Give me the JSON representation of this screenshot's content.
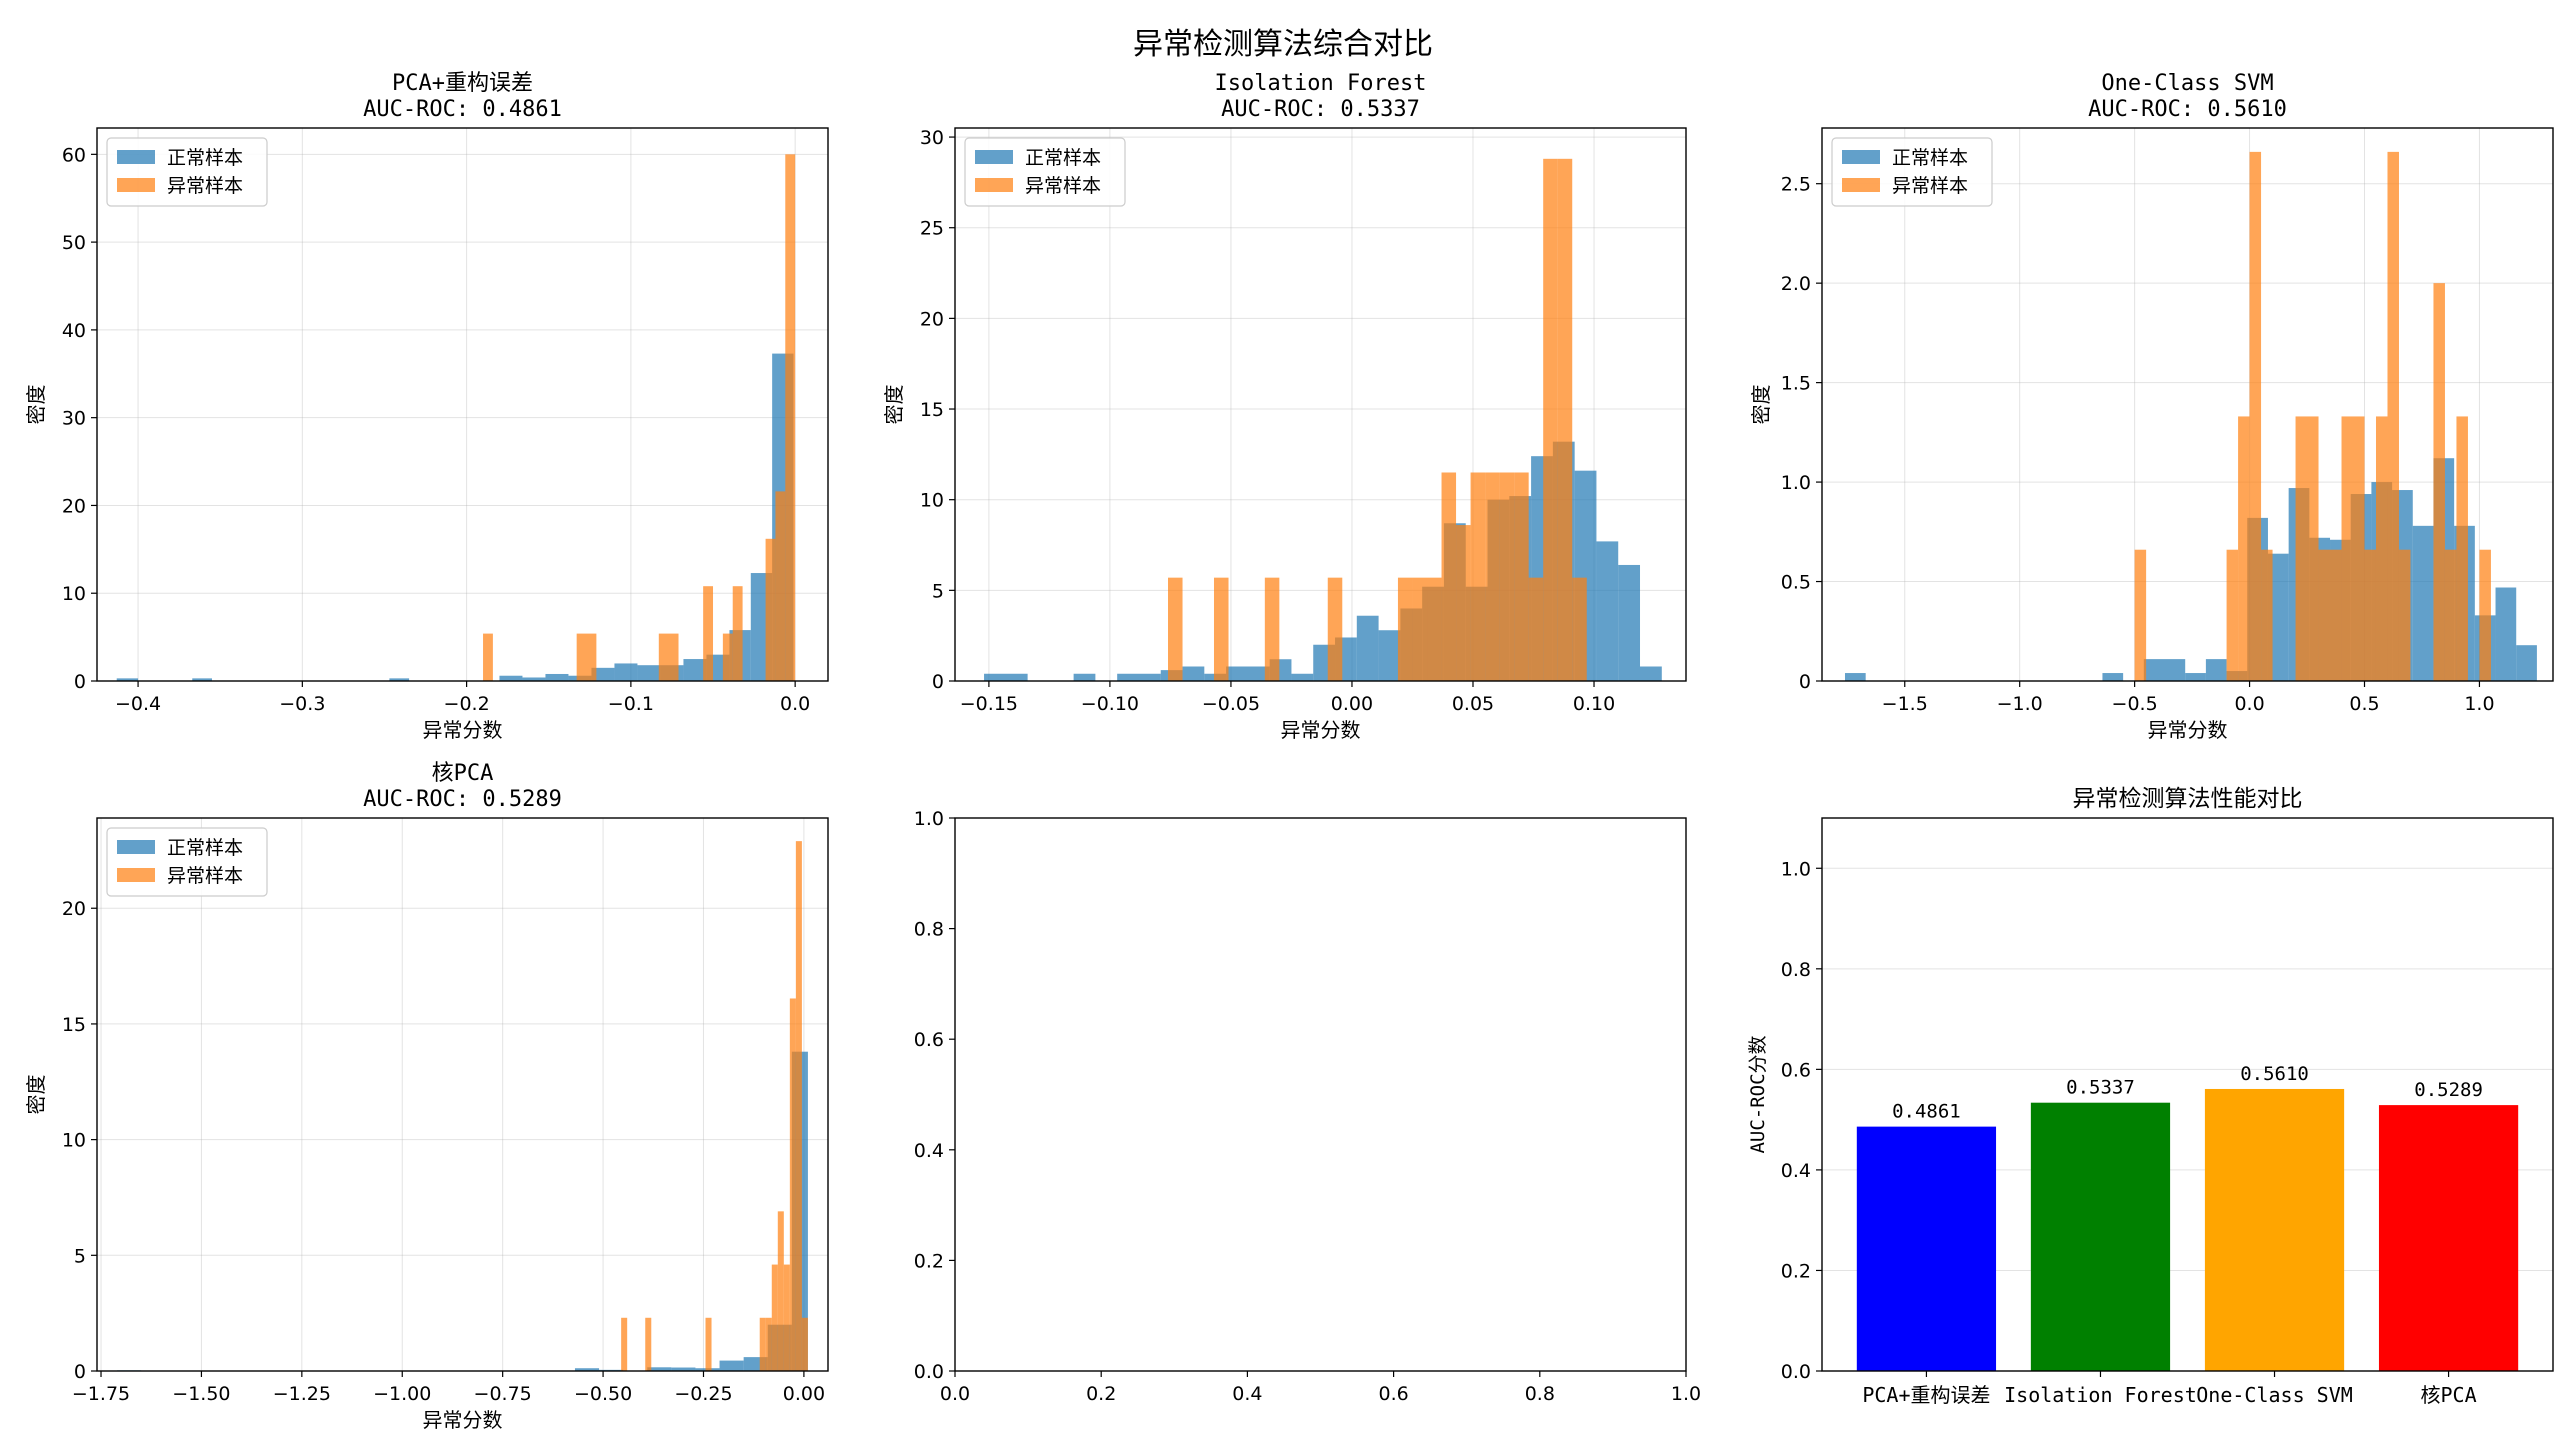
{
  "figure": {
    "title": "异常检测算法综合对比"
  },
  "colors": {
    "normal": "#1f77b4",
    "anomaly": "#ff7f0e",
    "grid": "#b0b0b0"
  },
  "legend": {
    "normal": "正常样本",
    "anomaly": "异常样本"
  },
  "chart_data": [
    {
      "type": "histogram",
      "title_line1": "PCA+重构误差",
      "title_line2": "AUC-ROC: 0.4861",
      "xlabel": "异常分数",
      "ylabel": "密度",
      "xlim": [
        -0.425,
        0.02
      ],
      "ylim": [
        0,
        63
      ],
      "xticks": [
        -0.4,
        -0.3,
        -0.2,
        -0.1,
        0.0
      ],
      "xtick_labels": [
        "−0.4",
        "−0.3",
        "−0.2",
        "−0.1",
        "0.0"
      ],
      "yticks": [
        0,
        10,
        20,
        30,
        40,
        50,
        60
      ],
      "ytick_labels": [
        "0",
        "10",
        "20",
        "30",
        "40",
        "50",
        "60"
      ],
      "legend_position": "upper left",
      "grid": true,
      "series": [
        {
          "name": "正常样本",
          "bins": [
            [
              -0.413,
              -0.4,
              0.3
            ],
            [
              -0.367,
              -0.355,
              0.3
            ],
            [
              -0.247,
              -0.235,
              0.3
            ],
            [
              -0.18,
              -0.166,
              0.6
            ],
            [
              -0.166,
              -0.152,
              0.4
            ],
            [
              -0.152,
              -0.138,
              0.8
            ],
            [
              -0.138,
              -0.124,
              0.6
            ],
            [
              -0.124,
              -0.11,
              1.5
            ],
            [
              -0.11,
              -0.096,
              2.0
            ],
            [
              -0.096,
              -0.082,
              1.8
            ],
            [
              -0.082,
              -0.068,
              1.8
            ],
            [
              -0.068,
              -0.054,
              2.5
            ],
            [
              -0.054,
              -0.04,
              3.0
            ],
            [
              -0.04,
              -0.027,
              5.8
            ],
            [
              -0.027,
              -0.014,
              12.3
            ],
            [
              -0.014,
              -0.001,
              37.3
            ]
          ]
        },
        {
          "name": "异常样本",
          "bins": [
            [
              -0.19,
              -0.184,
              5.4
            ],
            [
              -0.133,
              -0.121,
              5.4
            ],
            [
              -0.083,
              -0.071,
              5.4
            ],
            [
              -0.056,
              -0.05,
              10.8
            ],
            [
              -0.044,
              -0.038,
              5.4
            ],
            [
              -0.038,
              -0.032,
              10.8
            ],
            [
              -0.018,
              -0.012,
              16.2
            ],
            [
              -0.012,
              -0.006,
              21.6
            ],
            [
              -0.006,
              0.0,
              60.0
            ]
          ]
        }
      ]
    },
    {
      "type": "histogram",
      "title_line1": "Isolation Forest",
      "title_line2": "AUC-ROC: 0.5337",
      "xlabel": "异常分数",
      "ylabel": "密度",
      "xlim": [
        -0.164,
        0.138
      ],
      "ylim": [
        0,
        30.5
      ],
      "xticks": [
        -0.15,
        -0.1,
        -0.05,
        0.0,
        0.05,
        0.1
      ],
      "xtick_labels": [
        "−0.15",
        "−0.10",
        "−0.05",
        "0.00",
        "0.05",
        "0.10"
      ],
      "yticks": [
        0,
        5,
        10,
        15,
        20,
        25,
        30
      ],
      "ytick_labels": [
        "0",
        "5",
        "10",
        "15",
        "20",
        "25",
        "30"
      ],
      "legend_position": "upper left",
      "grid": true,
      "series": [
        {
          "name": "正常样本",
          "bins": [
            [
              -0.152,
              -0.134,
              0.4
            ],
            [
              -0.115,
              -0.106,
              0.4
            ],
            [
              -0.097,
              -0.079,
              0.4
            ],
            [
              -0.079,
              -0.07,
              0.6
            ],
            [
              -0.07,
              -0.061,
              0.8
            ],
            [
              -0.061,
              -0.052,
              0.4
            ],
            [
              -0.052,
              -0.034,
              0.8
            ],
            [
              -0.034,
              -0.025,
              1.2
            ],
            [
              -0.025,
              -0.016,
              0.4
            ],
            [
              -0.016,
              -0.007,
              2.0
            ],
            [
              -0.007,
              0.002,
              2.4
            ],
            [
              0.002,
              0.011,
              3.6
            ],
            [
              0.011,
              0.02,
              2.8
            ],
            [
              0.02,
              0.029,
              4.0
            ],
            [
              0.029,
              0.038,
              5.2
            ],
            [
              0.038,
              0.047,
              8.7
            ],
            [
              0.047,
              0.056,
              5.2
            ],
            [
              0.056,
              0.065,
              10.0
            ],
            [
              0.065,
              0.074,
              10.2
            ],
            [
              0.074,
              0.083,
              12.4
            ],
            [
              0.083,
              0.092,
              13.2
            ],
            [
              0.092,
              0.101,
              11.6
            ],
            [
              0.101,
              0.11,
              7.7
            ],
            [
              0.11,
              0.119,
              6.4
            ],
            [
              0.119,
              0.128,
              0.8
            ]
          ]
        },
        {
          "name": "异常样本",
          "bins": [
            [
              -0.076,
              -0.07,
              5.7
            ],
            [
              -0.057,
              -0.051,
              5.7
            ],
            [
              -0.036,
              -0.03,
              5.7
            ],
            [
              -0.01,
              -0.004,
              5.7
            ],
            [
              0.019,
              0.025,
              5.7
            ],
            [
              0.025,
              0.031,
              5.7
            ],
            [
              0.031,
              0.037,
              5.7
            ],
            [
              0.037,
              0.043,
              11.5
            ],
            [
              0.043,
              0.049,
              8.6
            ],
            [
              0.049,
              0.055,
              11.5
            ],
            [
              0.055,
              0.061,
              11.5
            ],
            [
              0.061,
              0.067,
              11.5
            ],
            [
              0.067,
              0.073,
              11.5
            ],
            [
              0.073,
              0.079,
              5.7
            ],
            [
              0.079,
              0.085,
              28.8
            ],
            [
              0.085,
              0.091,
              28.8
            ],
            [
              0.091,
              0.097,
              5.7
            ]
          ]
        }
      ]
    },
    {
      "type": "histogram",
      "title_line1": "One-Class SVM",
      "title_line2": "AUC-ROC: 0.5610",
      "xlabel": "异常分数",
      "ylabel": "密度",
      "xlim": [
        -1.86,
        1.32
      ],
      "ylim": [
        0,
        2.78
      ],
      "xticks": [
        -1.5,
        -1.0,
        -0.5,
        0.0,
        0.5,
        1.0
      ],
      "xtick_labels": [
        "−1.5",
        "−1.0",
        "−0.5",
        "0.0",
        "0.5",
        "1.0"
      ],
      "yticks": [
        0,
        0.5,
        1.0,
        1.5,
        2.0,
        2.5
      ],
      "ytick_labels": [
        "0",
        "0.5",
        "1.0",
        "1.5",
        "2.0",
        "2.5"
      ],
      "legend_position": "upper left",
      "grid": true,
      "series": [
        {
          "name": "正常样本",
          "bins": [
            [
              -1.76,
              -1.67,
              0.04
            ],
            [
              -0.64,
              -0.55,
              0.04
            ],
            [
              -0.46,
              -0.28,
              0.11
            ],
            [
              -0.28,
              -0.19,
              0.04
            ],
            [
              -0.19,
              -0.1,
              0.11
            ],
            [
              -0.1,
              -0.01,
              0.05
            ],
            [
              -0.01,
              0.08,
              0.82
            ],
            [
              0.08,
              0.17,
              0.64
            ],
            [
              0.17,
              0.26,
              0.97
            ],
            [
              0.26,
              0.35,
              0.72
            ],
            [
              0.35,
              0.44,
              0.71
            ],
            [
              0.44,
              0.53,
              0.94
            ],
            [
              0.53,
              0.62,
              1.0
            ],
            [
              0.62,
              0.71,
              0.96
            ],
            [
              0.71,
              0.8,
              0.78
            ],
            [
              0.8,
              0.89,
              1.12
            ],
            [
              0.89,
              0.98,
              0.78
            ],
            [
              0.98,
              1.07,
              0.33
            ],
            [
              1.07,
              1.16,
              0.47
            ],
            [
              1.16,
              1.25,
              0.18
            ]
          ]
        },
        {
          "name": "异常样本",
          "bins": [
            [
              -0.5,
              -0.45,
              0.66
            ],
            [
              -0.1,
              -0.05,
              0.66
            ],
            [
              -0.05,
              0.0,
              1.33
            ],
            [
              0.0,
              0.05,
              2.66
            ],
            [
              0.05,
              0.1,
              0.66
            ],
            [
              0.2,
              0.3,
              1.33
            ],
            [
              0.3,
              0.4,
              0.66
            ],
            [
              0.4,
              0.5,
              1.33
            ],
            [
              0.5,
              0.55,
              0.66
            ],
            [
              0.55,
              0.6,
              1.33
            ],
            [
              0.6,
              0.65,
              2.66
            ],
            [
              0.65,
              0.7,
              0.66
            ],
            [
              0.8,
              0.85,
              2.0
            ],
            [
              0.85,
              0.9,
              0.66
            ],
            [
              0.9,
              0.95,
              1.33
            ],
            [
              1.0,
              1.05,
              0.66
            ]
          ]
        }
      ]
    },
    {
      "type": "histogram",
      "title_line1": "核PCA",
      "title_line2": "AUC-ROC: 0.5289",
      "xlabel": "异常分数",
      "ylabel": "密度",
      "xlim": [
        -1.76,
        0.06
      ],
      "ylim": [
        0,
        23.9
      ],
      "xticks": [
        -1.75,
        -1.5,
        -1.25,
        -1.0,
        -0.75,
        -0.5,
        -0.25,
        0.0
      ],
      "xtick_labels": [
        "−1.75",
        "−1.50",
        "−1.25",
        "−1.00",
        "−0.75",
        "−0.50",
        "−0.25",
        "0.00"
      ],
      "yticks": [
        0,
        5,
        10,
        15,
        20
      ],
      "ytick_labels": [
        "0",
        "5",
        "10",
        "15",
        "20"
      ],
      "legend_position": "upper left",
      "grid": true,
      "series": [
        {
          "name": "正常样本",
          "bins": [
            [
              -1.71,
              -1.65,
              0.03
            ],
            [
              -0.57,
              -0.51,
              0.12
            ],
            [
              -0.51,
              -0.45,
              0.05
            ],
            [
              -0.39,
              -0.33,
              0.16
            ],
            [
              -0.33,
              -0.27,
              0.15
            ],
            [
              -0.27,
              -0.21,
              0.12
            ],
            [
              -0.21,
              -0.15,
              0.45
            ],
            [
              -0.15,
              -0.09,
              0.6
            ],
            [
              -0.09,
              -0.03,
              2.0
            ],
            [
              -0.03,
              0.01,
              13.8
            ]
          ]
        },
        {
          "name": "异常样本",
          "bins": [
            [
              -0.455,
              -0.44,
              2.3
            ],
            [
              -0.395,
              -0.38,
              2.3
            ],
            [
              -0.245,
              -0.23,
              2.3
            ],
            [
              -0.11,
              -0.095,
              2.3
            ],
            [
              -0.095,
              -0.08,
              2.3
            ],
            [
              -0.08,
              -0.065,
              4.6
            ],
            [
              -0.065,
              -0.05,
              6.9
            ],
            [
              -0.05,
              -0.035,
              4.6
            ],
            [
              -0.035,
              -0.02,
              16.1
            ],
            [
              -0.02,
              -0.005,
              22.9
            ],
            [
              -0.005,
              0.01,
              2.3
            ]
          ]
        }
      ]
    },
    {
      "type": "empty",
      "xlim": [
        0,
        1
      ],
      "ylim": [
        0,
        1
      ],
      "xticks": [
        0,
        0.2,
        0.4,
        0.6,
        0.8,
        1.0
      ],
      "xtick_labels": [
        "0.0",
        "0.2",
        "0.4",
        "0.6",
        "0.8",
        "1.0"
      ],
      "yticks": [
        0,
        0.2,
        0.4,
        0.6,
        0.8,
        1.0
      ],
      "ytick_labels": [
        "0.0",
        "0.2",
        "0.4",
        "0.6",
        "0.8",
        "1.0"
      ],
      "grid": false
    },
    {
      "type": "bar",
      "title": "异常检测算法性能对比",
      "ylabel": "AUC-ROC分数",
      "categories": [
        "PCA+重构误差",
        "Isolation Forest",
        "One-Class SVM",
        "核PCA"
      ],
      "values": [
        0.4861,
        0.5337,
        0.561,
        0.5289
      ],
      "value_labels": [
        "0.4861",
        "0.5337",
        "0.5610",
        "0.5289"
      ],
      "colors": [
        "#0000ff",
        "#008000",
        "#ffa500",
        "#ff0000"
      ],
      "ylim": [
        0,
        1.1
      ],
      "yticks": [
        0,
        0.2,
        0.4,
        0.6,
        0.8,
        1.0
      ],
      "ytick_labels": [
        "0.0",
        "0.2",
        "0.4",
        "0.6",
        "0.8",
        "1.0"
      ],
      "grid": "y"
    }
  ]
}
